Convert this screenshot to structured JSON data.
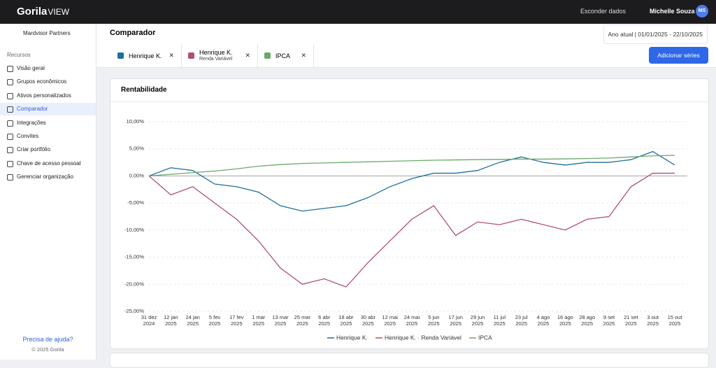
{
  "topbar": {
    "brand": "Gorila",
    "brand_suffix": "VIEW",
    "hide_data": "Esconder dados",
    "user": "Michelle Souza",
    "initials": "MS"
  },
  "sidebar": {
    "org": "Mardvisor Partners",
    "section": "Recursos",
    "items": [
      "Visão geral",
      "Grupos econômicos",
      "Ativos personalizados",
      "Comparador",
      "Integrações",
      "Convites",
      "Criar portfólio",
      "Chave de acesso pessoal",
      "Gerenciar organização"
    ],
    "help": "Precisa de ajuda?",
    "footer": "© 2025 Gorila"
  },
  "header": {
    "title": "Comparador",
    "period": "Ano atual | 01/01/2025 - 22/10/2025"
  },
  "chips": [
    {
      "label": "Henrique K.",
      "color": "#1f6f99"
    },
    {
      "label": "Henrique K.",
      "sublabel": "Renda Variável",
      "color": "#b0506e"
    },
    {
      "label": "IPCA",
      "color": "#6aa96a"
    }
  ],
  "add_button": "Adicionar séries",
  "chart_data": {
    "type": "line",
    "title": "Rentabilidade",
    "categories": [
      [
        "31 dez",
        "2024"
      ],
      [
        "12 jan",
        "2025"
      ],
      [
        "24 jan",
        "2025"
      ],
      [
        "5 fev",
        "2025"
      ],
      [
        "17 fev",
        "2025"
      ],
      [
        "1 mar",
        "2025"
      ],
      [
        "13 mar",
        "2025"
      ],
      [
        "25 mar",
        "2025"
      ],
      [
        "6 abr",
        "2025"
      ],
      [
        "18 abr",
        "2025"
      ],
      [
        "30 abr",
        "2025"
      ],
      [
        "12 mai",
        "2025"
      ],
      [
        "24 mai",
        "2025"
      ],
      [
        "5 jun",
        "2025"
      ],
      [
        "17 jun",
        "2025"
      ],
      [
        "29 jun",
        "2025"
      ],
      [
        "11 jul",
        "2025"
      ],
      [
        "23 jul",
        "2025"
      ],
      [
        "4 ago",
        "2025"
      ],
      [
        "16 ago",
        "2025"
      ],
      [
        "28 ago",
        "2025"
      ],
      [
        "9 set",
        "2025"
      ],
      [
        "21 set",
        "2025"
      ],
      [
        "3 out",
        "2025"
      ],
      [
        "15 out",
        "2025"
      ]
    ],
    "series": [
      {
        "name": "Henrique K.",
        "color": "#1f6f99",
        "values": [
          0,
          1.5,
          1,
          -1.5,
          -2,
          -3,
          -5.5,
          -6.5,
          -6,
          -5.5,
          -4,
          -2,
          -0.5,
          0.5,
          0.5,
          1,
          2.5,
          3.5,
          2.5,
          2,
          2.5,
          2.5,
          3,
          4.5,
          2
        ]
      },
      {
        "name": "Henrique K. · Renda Variável",
        "color": "#b0506e",
        "values": [
          0,
          -3.5,
          -2,
          -5,
          -8,
          -12,
          -17,
          -20,
          -19,
          -20.5,
          -16,
          -12,
          -8,
          -5.5,
          -11,
          -8.5,
          -9,
          -8,
          -9,
          -10,
          -8,
          -7.5,
          -2,
          0.5,
          0.5
        ]
      },
      {
        "name": "IPCA",
        "color": "#6aa96a",
        "values": [
          0,
          0.3,
          0.6,
          0.9,
          1.3,
          1.8,
          2.1,
          2.3,
          2.4,
          2.5,
          2.6,
          2.7,
          2.8,
          2.9,
          2.95,
          3,
          3.05,
          3.1,
          3.1,
          3.15,
          3.2,
          3.3,
          3.5,
          3.7,
          3.8
        ]
      }
    ],
    "ylim": [
      -25,
      10
    ],
    "yticks": [
      {
        "value": -25,
        "label": "-25,00%"
      },
      {
        "value": -20,
        "label": "-20,00%"
      },
      {
        "value": -15,
        "label": "-15,00%"
      },
      {
        "value": -10,
        "label": "-10,00%"
      },
      {
        "value": -5,
        "label": "-5,00%"
      },
      {
        "value": 0,
        "label": "0,00%"
      },
      {
        "value": 5,
        "label": "5,00%"
      },
      {
        "value": 10,
        "label": "10,00%"
      }
    ],
    "grid": true
  }
}
